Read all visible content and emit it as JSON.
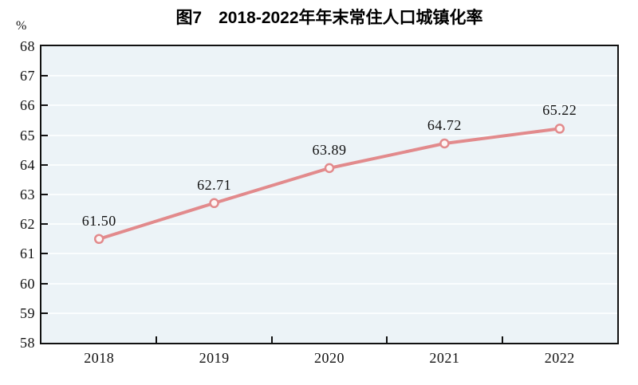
{
  "chart_data": {
    "type": "line",
    "title": "图7　2018-2022年年末常住人口城镇化率",
    "unit_label": "%",
    "categories": [
      "2018",
      "2019",
      "2020",
      "2021",
      "2022"
    ],
    "values": [
      61.5,
      62.71,
      63.89,
      64.72,
      65.22
    ],
    "data_labels": [
      "61.50",
      "62.71",
      "63.89",
      "64.72",
      "65.22"
    ],
    "series_name": "年末常住人口城镇化率",
    "ylim": [
      58,
      68
    ],
    "yticks": [
      "68",
      "67",
      "66",
      "65",
      "64",
      "63",
      "62",
      "61",
      "60",
      "59",
      "58"
    ],
    "legend": "none",
    "grid": "horizontal",
    "layout": "x labels centered between boundary ticks; data labels above markers",
    "colors": {
      "line": "#e28a8c",
      "marker_fill": "#fdf5f4",
      "plot_bg": "#ecf3f7",
      "gridline": "#fafdfe",
      "axis": "#111111",
      "text": "#111111",
      "title": "#000000",
      "page_bg": "#ffffff"
    }
  }
}
